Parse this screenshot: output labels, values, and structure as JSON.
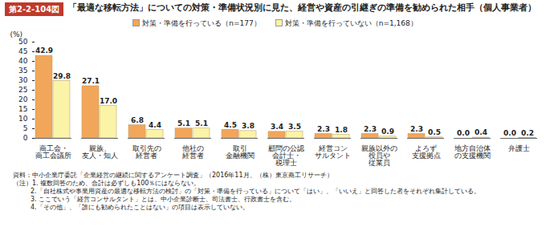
{
  "chart_data": {
    "type": "bar",
    "figure_label": "第2-2-104図",
    "title": "「最適な移転方法」についての対策・準備状況別に見た、経営や資産の引継ぎの準備を勧められた相手（個人事業者）",
    "y_label": "(%)",
    "categories": [
      "商工会・\n商工会議所",
      "親族、\n友人・知人",
      "取引先の\n経営者",
      "他社の\n経営者",
      "取引\n金融機関",
      "顧問の公認\n会計士・\n税理士",
      "経営コン\nサルタント",
      "親族以外の\n役員や\n従業員",
      "よろず\n支援拠点",
      "地方自治体\nの支援機関",
      "弁護士"
    ],
    "series": [
      {
        "name": "対策・準備を行っている（n=177）",
        "color": "#f2a65a",
        "values": [
          42.9,
          27.1,
          6.8,
          5.1,
          4.5,
          3.4,
          2.3,
          2.3,
          2.3,
          0.0,
          0.0
        ],
        "value_labels": [
          "42.9",
          "27.1",
          "6.8",
          "5.1",
          "4.5",
          "3.4",
          "2.3",
          "2.3",
          "2.3",
          "0.0",
          "0.0"
        ]
      },
      {
        "name": "対策・準備を行っていない（n=1,168）",
        "color": "#fbf3a6",
        "values": [
          29.8,
          17.0,
          4.4,
          5.1,
          3.8,
          3.5,
          1.8,
          0.9,
          0.5,
          0.4,
          0.2
        ],
        "value_labels": [
          "29.8",
          "17.0",
          "4.4",
          "5.1",
          "3.8",
          "3.5",
          "1.8",
          "0.9",
          "0.5",
          "0.4",
          "0.2"
        ]
      }
    ],
    "ylim": [
      0,
      50
    ],
    "yticks": [
      0,
      5,
      10,
      15,
      20,
      25,
      30,
      35,
      40,
      45,
      50
    ],
    "data_labels": true,
    "legend": "top",
    "grid": false,
    "source": "資料：中小企業庁委託「企業経営の継続に関するアンケート調査」（2016年11月、（株）東京商工リサーチ）",
    "notes": [
      "（注）1. 複数回答のため、合計は必ずしも100％にはならない。",
      "2.「自社株式や事業用資産の最適な移転方法の検討」の「対策・準備を行っている」について「はい」、「いいえ」と回答した者をそれぞれ集計している。",
      "3. ここでいう「経営コンサルタント」とは、中小企業診断士、司法書士、行政書士を含む。",
      "4.「その他」、「誰にも勧められたことはない」の項目は表示していない。"
    ]
  }
}
